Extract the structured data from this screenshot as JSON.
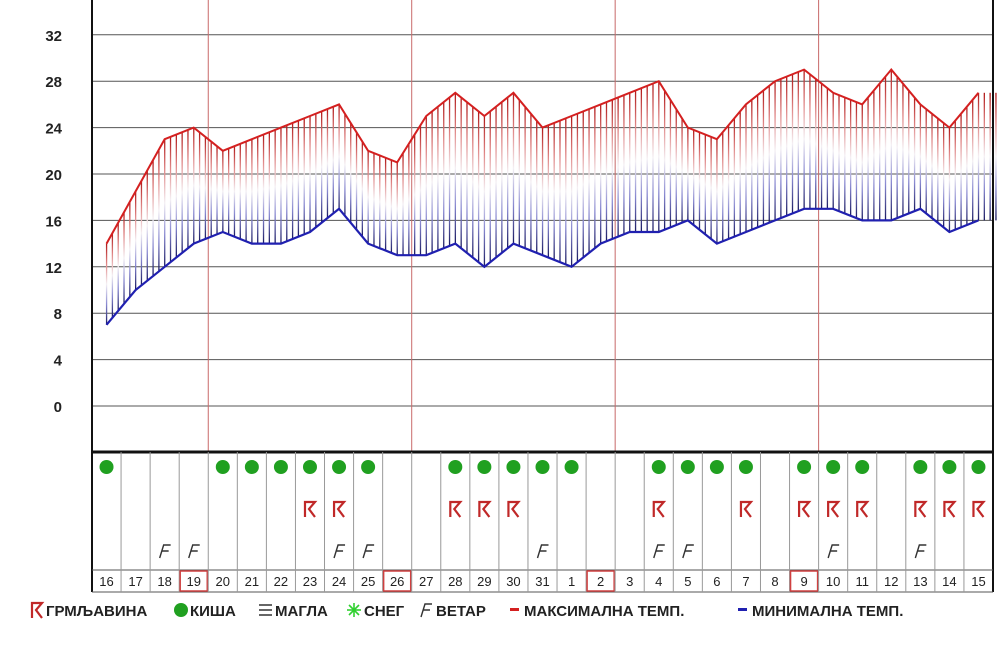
{
  "chart_data": {
    "type": "area",
    "title": "",
    "xlabel": "",
    "ylabel": "",
    "ylim": [
      -4,
      35
    ],
    "yticks": [
      0,
      4,
      8,
      12,
      16,
      20,
      24,
      28,
      32
    ],
    "categories": [
      "16",
      "17",
      "18",
      "19",
      "20",
      "21",
      "22",
      "23",
      "24",
      "25",
      "26",
      "27",
      "28",
      "29",
      "30",
      "31",
      "1",
      "2",
      "3",
      "4",
      "5",
      "6",
      "7",
      "8",
      "9",
      "10",
      "11",
      "12",
      "13",
      "14",
      "15"
    ],
    "highlighted_days": [
      "19",
      "26",
      "2",
      "9"
    ],
    "series": [
      {
        "name": "МАКСИМАЛНА ТЕМП.",
        "color": "#d42020",
        "values": [
          14,
          18.5,
          23,
          24,
          22,
          23,
          24,
          25,
          26,
          22,
          21,
          25,
          27,
          25,
          27,
          24,
          25,
          26,
          27,
          28,
          24,
          23,
          26,
          28,
          29,
          27,
          26,
          29,
          26,
          24,
          27
        ]
      },
      {
        "name": "МИНИМАЛНА ТЕМП.",
        "color": "#2020b0",
        "values": [
          7,
          10,
          12,
          14,
          15,
          14,
          14,
          15,
          17,
          14,
          13,
          13,
          14,
          12,
          14,
          13,
          12,
          14,
          15,
          15,
          16,
          14,
          15,
          16,
          17,
          17,
          16,
          16,
          17,
          15,
          16
        ]
      }
    ],
    "rain": [
      "16",
      "20",
      "21",
      "22",
      "23",
      "24",
      "25",
      "28",
      "29",
      "30",
      "31",
      "1",
      "4",
      "5",
      "6",
      "7",
      "9",
      "10",
      "11",
      "13",
      "14",
      "15"
    ],
    "thunderstorm": [
      "23",
      "24",
      "28",
      "29",
      "30",
      "4",
      "7",
      "9",
      "10",
      "11",
      "13",
      "14",
      "15"
    ],
    "wind": [
      "18",
      "19",
      "24",
      "25",
      "31",
      "4",
      "5",
      "10",
      "13"
    ],
    "grid": true
  },
  "legend": {
    "thunderstorm": "ГРМЉАВИНА",
    "rain": "КИША",
    "fog": "МАГЛА",
    "snow": "СНЕГ",
    "wind": "ВЕТАР",
    "max": "МАКСИМАЛНА ТЕМП.",
    "min": "МИНИМАЛНА ТЕМП."
  }
}
